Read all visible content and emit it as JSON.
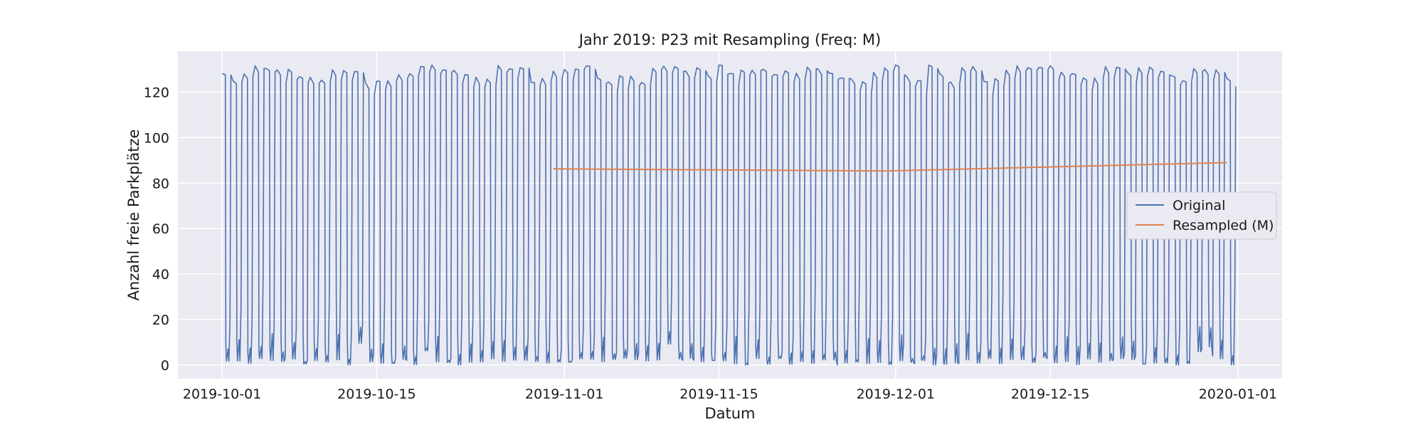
{
  "chart_data": {
    "type": "line",
    "title": "Jahr 2019: P23 mit Resampling (Freq: M)",
    "xlabel": "Datum",
    "ylabel": "Anzahl freie Parkplätze",
    "xlim": [
      "2019-09-27",
      "2020-01-05"
    ],
    "ylim": [
      -6,
      138
    ],
    "x_ticks": [
      "2019-10-01",
      "2019-10-15",
      "2019-11-01",
      "2019-11-15",
      "2019-12-01",
      "2019-12-15",
      "2020-01-01"
    ],
    "y_ticks": [
      0,
      20,
      40,
      60,
      80,
      100,
      120
    ],
    "grid": true,
    "legend_position": "center-right",
    "series": [
      {
        "name": "Original",
        "color": "#4c72b0",
        "pattern": "daily oscillation between roughly 0 and 132 free spaces, from 2019-10-01 to 2019-12-31",
        "x_range": [
          "2019-10-01",
          "2019-12-31"
        ],
        "y_range": [
          0,
          132
        ]
      },
      {
        "name": "Resampled (M)",
        "color": "#dd8452",
        "x": [
          "2019-10-31",
          "2019-11-30",
          "2019-12-31"
        ],
        "values": [
          86.3,
          85.3,
          89.0
        ]
      }
    ]
  }
}
